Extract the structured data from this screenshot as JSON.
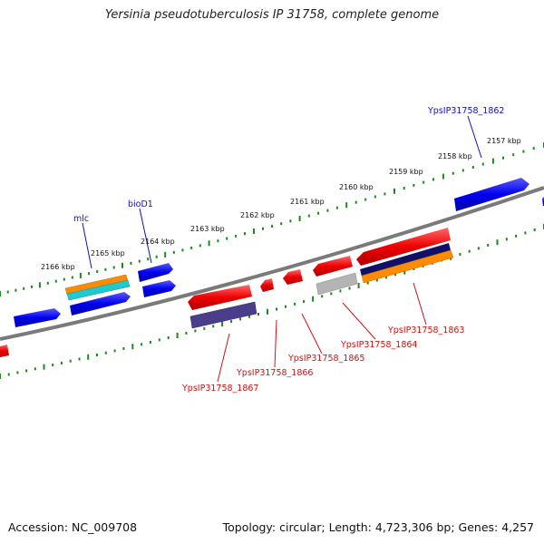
{
  "title": "Yersinia pseudotuberculosis IP 31758, complete genome",
  "footer": {
    "accession": "Accession: NC_009708",
    "topology": "Topology: circular; Length: 4,723,306 bp; Genes: 4,257"
  },
  "colors": {
    "backbone": "#7a7a7a",
    "ticks": "#1a8a1a",
    "forward_gene": "#0000ee",
    "reverse_gene": "#ee0000",
    "orange_feature": "#ff8c00",
    "cyan_feature": "#20c8d0",
    "navy_feature": "#10106a",
    "slate_feature": "#4a3e8a",
    "grey_feature": "#b4b4b4",
    "label_blue": "#1010c0",
    "label_red": "#d01010"
  },
  "kbp_labels": [
    "2166 kbp",
    "2165 kbp",
    "2164 kbp",
    "2163 kbp",
    "2162 kbp",
    "2161 kbp",
    "2160 kbp",
    "2159 kbp",
    "2158 kbp",
    "2157 kbp"
  ],
  "gene_labels_top": [
    "mlc",
    "bioD1",
    "YpsIP31758_1862"
  ],
  "gene_labels_bottom": [
    "YpsIP31758_1867",
    "YpsIP31758_1866",
    "YpsIP31758_1865",
    "YpsIP31758_1864",
    "YpsIP31758_1863"
  ]
}
